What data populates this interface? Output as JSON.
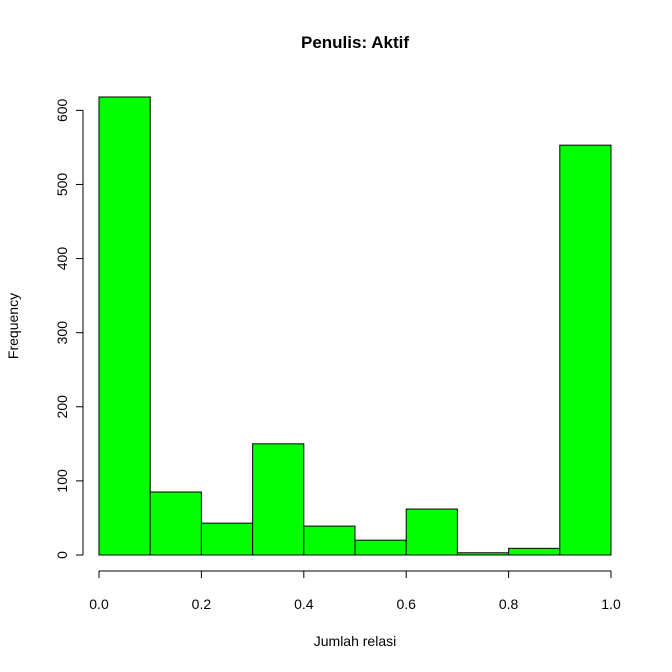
{
  "chart_data": {
    "type": "bar",
    "title": "Penulis: Aktif",
    "xlabel": "Jumlah relasi",
    "ylabel": "Frequency",
    "bins": [
      [
        0.0,
        0.1
      ],
      [
        0.1,
        0.2
      ],
      [
        0.2,
        0.3
      ],
      [
        0.3,
        0.4
      ],
      [
        0.4,
        0.5
      ],
      [
        0.5,
        0.6
      ],
      [
        0.6,
        0.7
      ],
      [
        0.7,
        0.8
      ],
      [
        0.8,
        0.9
      ],
      [
        0.9,
        1.0
      ]
    ],
    "values": [
      618,
      85,
      43,
      150,
      39,
      20,
      62,
      3,
      9,
      553
    ],
    "xlim": [
      0.0,
      1.0
    ],
    "ylim": [
      0,
      618
    ],
    "xticks": [
      "0.0",
      "0.2",
      "0.4",
      "0.6",
      "0.8",
      "1.0"
    ],
    "yticks": [
      "0",
      "100",
      "200",
      "300",
      "400",
      "500",
      "600"
    ],
    "bar_color": "#00ff00",
    "grid": false,
    "legend": "none"
  }
}
